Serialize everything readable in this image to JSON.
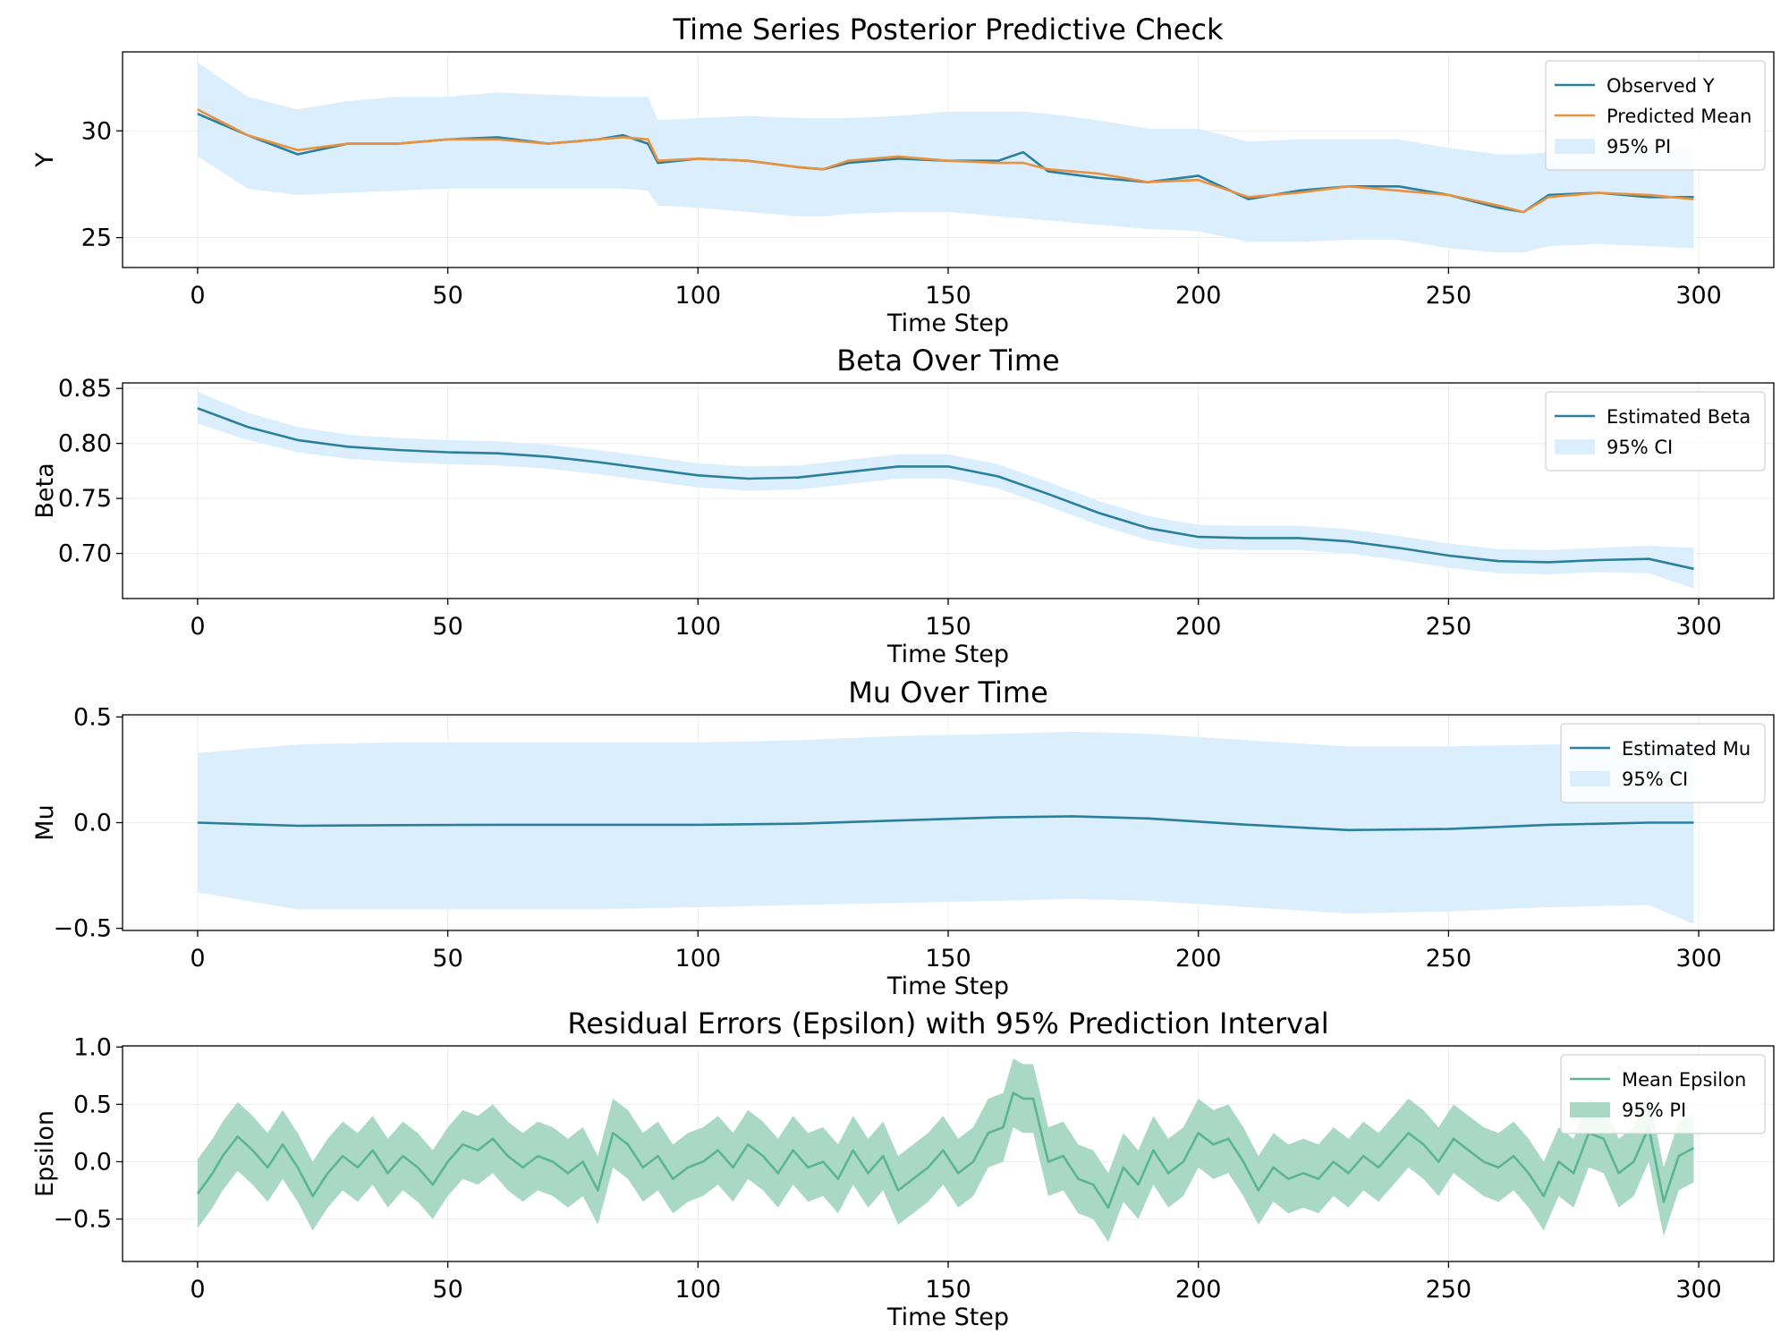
{
  "chart_data": [
    {
      "type": "line",
      "title": "Time Series Posterior Predictive Check",
      "xlabel": "Time Step",
      "ylabel": "Y",
      "xlim": [
        -15,
        315
      ],
      "ylim": [
        23.6,
        33.7
      ],
      "xticks": [
        0,
        50,
        100,
        150,
        200,
        250,
        300
      ],
      "yticks": [
        25,
        30
      ],
      "grid": true,
      "legend_position": "top-right",
      "colors": {
        "observed": "#2a7f9e",
        "predicted": "#e8923f",
        "band": "#dbeefd"
      },
      "legend": [
        "Observed Y",
        "Predicted Mean",
        "95% PI"
      ],
      "x": [
        0,
        10,
        20,
        30,
        40,
        50,
        60,
        70,
        80,
        85,
        90,
        92,
        100,
        110,
        120,
        125,
        130,
        140,
        150,
        160,
        165,
        170,
        180,
        190,
        200,
        210,
        220,
        230,
        240,
        250,
        260,
        265,
        270,
        280,
        290,
        299
      ],
      "series": [
        {
          "name": "Observed Y",
          "values": [
            30.8,
            29.8,
            28.9,
            29.4,
            29.4,
            29.6,
            29.7,
            29.4,
            29.6,
            29.8,
            29.4,
            28.5,
            28.7,
            28.6,
            28.3,
            28.2,
            28.5,
            28.7,
            28.6,
            28.6,
            29.0,
            28.1,
            27.8,
            27.6,
            27.9,
            26.8,
            27.2,
            27.4,
            27.4,
            27.0,
            26.4,
            26.2,
            27.0,
            27.1,
            26.9,
            26.9
          ]
        },
        {
          "name": "Predicted Mean",
          "values": [
            31.0,
            29.8,
            29.1,
            29.4,
            29.4,
            29.6,
            29.6,
            29.4,
            29.6,
            29.7,
            29.6,
            28.6,
            28.7,
            28.6,
            28.3,
            28.2,
            28.6,
            28.8,
            28.6,
            28.5,
            28.5,
            28.2,
            28.0,
            27.6,
            27.7,
            26.9,
            27.1,
            27.4,
            27.2,
            27.0,
            26.5,
            26.2,
            26.9,
            27.1,
            27.0,
            26.8
          ]
        }
      ],
      "band": {
        "name": "95% PI",
        "lower": [
          28.8,
          27.3,
          27.0,
          27.1,
          27.2,
          27.3,
          27.3,
          27.3,
          27.3,
          27.3,
          27.2,
          26.5,
          26.4,
          26.2,
          26.0,
          26.0,
          26.1,
          26.2,
          26.2,
          26.0,
          25.9,
          25.8,
          25.6,
          25.4,
          25.3,
          24.8,
          24.8,
          24.9,
          24.9,
          24.5,
          24.3,
          24.3,
          24.6,
          24.7,
          24.6,
          24.5
        ],
        "upper": [
          33.2,
          31.6,
          31.0,
          31.4,
          31.6,
          31.6,
          31.8,
          31.7,
          31.6,
          31.6,
          31.6,
          30.5,
          30.6,
          30.7,
          30.6,
          30.6,
          30.6,
          30.7,
          30.9,
          30.9,
          30.9,
          30.8,
          30.5,
          30.1,
          30.1,
          29.5,
          29.6,
          29.6,
          29.6,
          29.2,
          28.9,
          28.9,
          29.0,
          29.4,
          29.3,
          29.2
        ]
      }
    },
    {
      "type": "line",
      "title": "Beta Over Time",
      "xlabel": "Time Step",
      "ylabel": "Beta",
      "xlim": [
        -15,
        315
      ],
      "ylim": [
        0.659,
        0.855
      ],
      "xticks": [
        0,
        50,
        100,
        150,
        200,
        250,
        300
      ],
      "yticks": [
        0.7,
        0.75,
        0.8,
        0.85
      ],
      "ytick_labels": [
        "0.70",
        "0.75",
        "0.80",
        "0.85"
      ],
      "grid": true,
      "legend_position": "top-right",
      "colors": {
        "line": "#2a7f9e",
        "band": "#dbeefd"
      },
      "legend": [
        "Estimated Beta",
        "95% CI"
      ],
      "x": [
        0,
        10,
        20,
        30,
        40,
        50,
        60,
        70,
        80,
        90,
        100,
        110,
        120,
        130,
        140,
        150,
        160,
        170,
        180,
        190,
        200,
        210,
        220,
        230,
        240,
        250,
        260,
        270,
        280,
        290,
        299
      ],
      "series": [
        {
          "name": "Estimated Beta",
          "values": [
            0.832,
            0.815,
            0.803,
            0.797,
            0.794,
            0.792,
            0.791,
            0.788,
            0.783,
            0.777,
            0.771,
            0.768,
            0.769,
            0.774,
            0.779,
            0.779,
            0.77,
            0.754,
            0.737,
            0.723,
            0.715,
            0.714,
            0.714,
            0.711,
            0.705,
            0.698,
            0.693,
            0.692,
            0.694,
            0.695,
            0.686
          ]
        }
      ],
      "band": {
        "name": "95% CI",
        "lower": [
          0.818,
          0.803,
          0.792,
          0.786,
          0.783,
          0.781,
          0.78,
          0.777,
          0.772,
          0.766,
          0.76,
          0.757,
          0.758,
          0.763,
          0.768,
          0.768,
          0.759,
          0.743,
          0.726,
          0.712,
          0.704,
          0.703,
          0.703,
          0.7,
          0.694,
          0.687,
          0.682,
          0.681,
          0.683,
          0.682,
          0.668
        ],
        "upper": [
          0.847,
          0.828,
          0.815,
          0.808,
          0.805,
          0.803,
          0.802,
          0.799,
          0.794,
          0.788,
          0.782,
          0.779,
          0.78,
          0.785,
          0.79,
          0.79,
          0.781,
          0.765,
          0.748,
          0.734,
          0.726,
          0.725,
          0.725,
          0.722,
          0.716,
          0.709,
          0.704,
          0.703,
          0.705,
          0.707,
          0.705
        ]
      }
    },
    {
      "type": "line",
      "title": "Mu Over Time",
      "xlabel": "Time Step",
      "ylabel": "Mu",
      "xlim": [
        -15,
        315
      ],
      "ylim": [
        -0.51,
        0.51
      ],
      "xticks": [
        0,
        50,
        100,
        150,
        200,
        250,
        300
      ],
      "yticks": [
        -0.5,
        0.0,
        0.5
      ],
      "ytick_labels": [
        "−0.5",
        "0.0",
        "0.5"
      ],
      "grid": true,
      "legend_position": "top-right",
      "colors": {
        "line": "#2a7f9e",
        "band": "#dbeefd"
      },
      "legend": [
        "Estimated Mu",
        "95% CI"
      ],
      "x": [
        0,
        20,
        40,
        60,
        80,
        100,
        120,
        140,
        160,
        175,
        190,
        210,
        230,
        250,
        270,
        290,
        299
      ],
      "series": [
        {
          "name": "Estimated Mu",
          "values": [
            0.0,
            -0.015,
            -0.012,
            -0.01,
            -0.01,
            -0.01,
            -0.005,
            0.01,
            0.025,
            0.03,
            0.02,
            -0.01,
            -0.035,
            -0.03,
            -0.01,
            0.0,
            0.0
          ]
        }
      ],
      "band": {
        "name": "95% CI",
        "lower": [
          -0.33,
          -0.41,
          -0.41,
          -0.41,
          -0.41,
          -0.4,
          -0.39,
          -0.38,
          -0.37,
          -0.36,
          -0.37,
          -0.4,
          -0.43,
          -0.42,
          -0.4,
          -0.39,
          -0.48
        ],
        "upper": [
          0.33,
          0.37,
          0.38,
          0.38,
          0.38,
          0.38,
          0.39,
          0.41,
          0.42,
          0.43,
          0.42,
          0.39,
          0.36,
          0.36,
          0.37,
          0.38,
          0.39
        ]
      }
    },
    {
      "type": "area",
      "title": "Residual Errors (Epsilon) with 95% Prediction Interval",
      "xlabel": "Time Step",
      "ylabel": "Epsilon",
      "xlim": [
        -15,
        315
      ],
      "ylim": [
        -0.87,
        1.01
      ],
      "xticks": [
        0,
        50,
        100,
        150,
        200,
        250,
        300
      ],
      "yticks": [
        -0.5,
        0.0,
        0.5,
        1.0
      ],
      "ytick_labels": [
        "−0.5",
        "0.0",
        "0.5",
        "1.0"
      ],
      "grid": true,
      "legend_position": "top-right",
      "colors": {
        "line": "#5cb592",
        "band": "#a9d9c4"
      },
      "legend": [
        "Mean Epsilon",
        "95% PI"
      ],
      "band_halfwidth": 0.3,
      "x": [
        0,
        3,
        5,
        8,
        11,
        14,
        17,
        20,
        23,
        26,
        29,
        32,
        35,
        38,
        41,
        44,
        47,
        50,
        53,
        56,
        59,
        62,
        65,
        68,
        71,
        74,
        77,
        80,
        83,
        86,
        89,
        92,
        95,
        98,
        101,
        104,
        107,
        110,
        113,
        116,
        119,
        122,
        125,
        128,
        131,
        134,
        137,
        140,
        143,
        146,
        149,
        152,
        155,
        158,
        161,
        163,
        165,
        167,
        170,
        173,
        176,
        179,
        182,
        185,
        188,
        191,
        194,
        197,
        200,
        203,
        206,
        209,
        212,
        215,
        218,
        221,
        224,
        227,
        230,
        233,
        236,
        239,
        242,
        245,
        248,
        251,
        254,
        257,
        260,
        263,
        266,
        269,
        272,
        275,
        278,
        281,
        284,
        287,
        290,
        293,
        296,
        299
      ],
      "series": [
        {
          "name": "Mean Epsilon",
          "values": [
            -0.28,
            -0.1,
            0.05,
            0.22,
            0.1,
            -0.05,
            0.15,
            -0.05,
            -0.3,
            -0.1,
            0.05,
            -0.05,
            0.1,
            -0.1,
            0.05,
            -0.05,
            -0.2,
            0.0,
            0.15,
            0.1,
            0.2,
            0.05,
            -0.05,
            0.05,
            0.0,
            -0.1,
            0.0,
            -0.25,
            0.25,
            0.15,
            -0.05,
            0.05,
            -0.15,
            -0.05,
            0.0,
            0.1,
            -0.05,
            0.15,
            0.05,
            -0.1,
            0.1,
            -0.05,
            0.0,
            -0.15,
            0.1,
            -0.1,
            0.05,
            -0.25,
            -0.15,
            -0.05,
            0.1,
            -0.1,
            0.0,
            0.25,
            0.3,
            0.6,
            0.55,
            0.55,
            0.0,
            0.05,
            -0.15,
            -0.2,
            -0.4,
            -0.05,
            -0.2,
            0.1,
            -0.1,
            0.0,
            0.25,
            0.15,
            0.2,
            0.0,
            -0.25,
            -0.05,
            -0.15,
            -0.1,
            -0.15,
            0.0,
            -0.1,
            0.05,
            -0.05,
            0.1,
            0.25,
            0.15,
            0.0,
            0.2,
            0.1,
            0.0,
            -0.05,
            0.05,
            -0.1,
            -0.3,
            0.0,
            -0.1,
            0.25,
            0.2,
            -0.1,
            0.0,
            0.3,
            -0.35,
            0.05,
            0.12
          ]
        }
      ],
      "band": {
        "name": "95% PI"
      }
    }
  ]
}
